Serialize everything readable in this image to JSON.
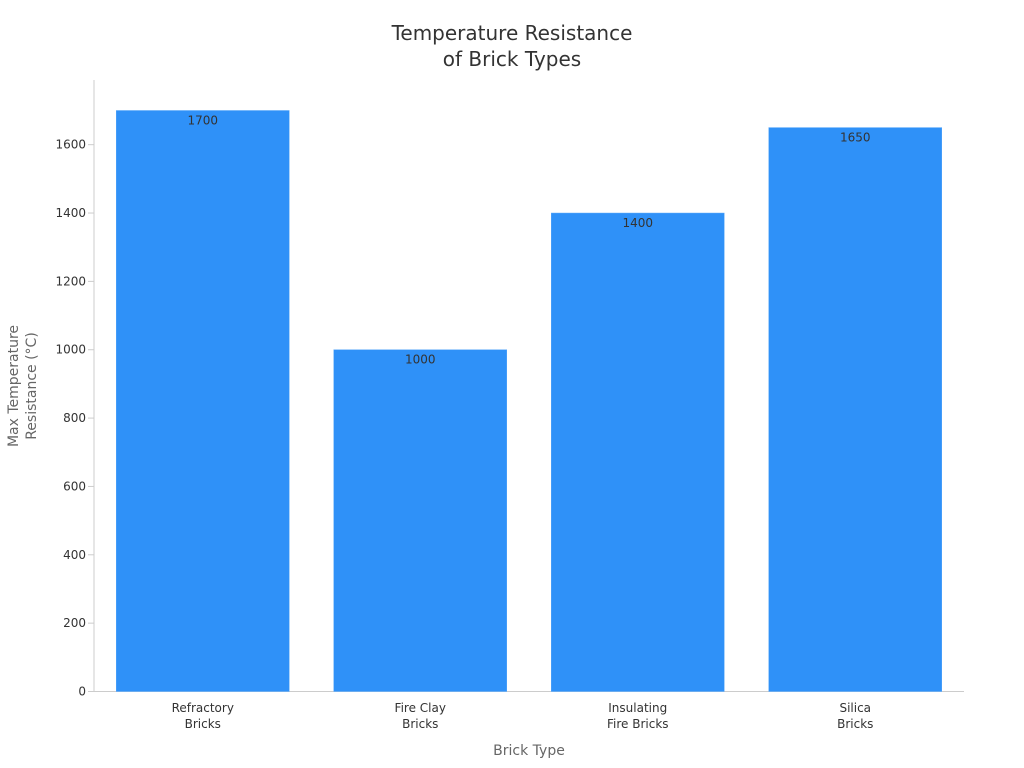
{
  "chart_data": {
    "type": "bar",
    "title": "Temperature Resistance of Brick Types",
    "title_lines": [
      "Temperature Resistance",
      "of Brick Types"
    ],
    "xlabel": "Brick Type",
    "ylabel": "Max Temperature Resistance (°C)",
    "ylabel_lines": [
      "Max Temperature",
      "Resistance (°C)"
    ],
    "categories": [
      "Refractory Bricks",
      "Fire Clay Bricks",
      "Insulating Fire Bricks",
      "Silica Bricks"
    ],
    "category_lines": [
      [
        "Refractory",
        "Bricks"
      ],
      [
        "Fire Clay",
        "Bricks"
      ],
      [
        "Insulating",
        "Fire Bricks"
      ],
      [
        "Silica",
        "Bricks"
      ]
    ],
    "values": [
      1700,
      1000,
      1400,
      1650
    ],
    "data_labels": [
      "1700",
      "1000",
      "1400",
      "1650"
    ],
    "ylim": [
      0,
      1780
    ],
    "yticks": [
      0,
      200,
      400,
      600,
      800,
      1000,
      1200,
      1400,
      1600
    ],
    "grid": false,
    "legend": "none",
    "colors": {
      "bar": "#2F91F8",
      "axis": "#cccccc",
      "text": "#333333",
      "axis_title": "#666666"
    }
  }
}
